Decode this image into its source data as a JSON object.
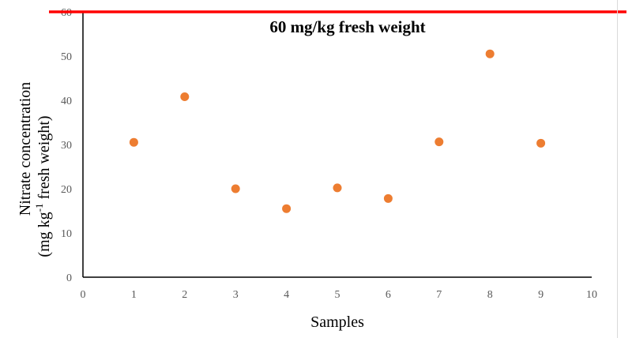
{
  "chart_data": {
    "type": "scatter",
    "xlabel": "Samples",
    "ylabel_line1": "Nitrate concentration",
    "ylabel_line2_pre": "(mg kg",
    "ylabel_line2_sup": "-1",
    "ylabel_line2_post": " fresh weight)",
    "xlim": [
      0,
      10
    ],
    "ylim": [
      0,
      60
    ],
    "x_ticks": [
      0,
      1,
      2,
      3,
      4,
      5,
      6,
      7,
      8,
      9,
      10
    ],
    "y_ticks": [
      0,
      10,
      20,
      30,
      40,
      50,
      60
    ],
    "series": [
      {
        "x": [
          1,
          2,
          3,
          4,
          5,
          6,
          7,
          8,
          9
        ],
        "y": [
          30.5,
          40.8,
          20.0,
          15.5,
          20.2,
          17.8,
          30.6,
          50.5,
          30.3
        ],
        "color": "#ED7D31"
      }
    ],
    "reference_line": {
      "y": 60,
      "label": "60 mg/kg fresh weight",
      "color": "#FF0000"
    },
    "grid": false
  }
}
